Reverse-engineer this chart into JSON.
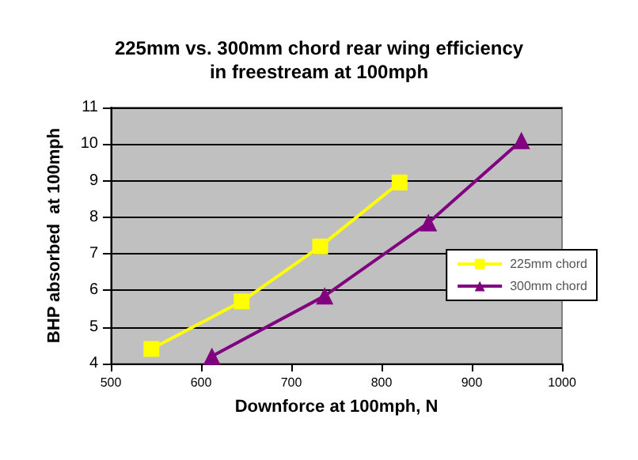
{
  "chart_data": {
    "type": "line",
    "title": "225mm vs. 300mm chord rear wing efficiency\nin freestream at 100mph",
    "xlabel": "Downforce at 100mph, N",
    "ylabel": "BHP absorbed  at 100mph",
    "xlim": [
      500,
      1000
    ],
    "xticks": [
      500,
      600,
      700,
      800,
      900,
      1000
    ],
    "ylim": [
      4,
      11
    ],
    "yticks": [
      4,
      5,
      6,
      7,
      8,
      9,
      10,
      11
    ],
    "grid": "y",
    "legend": "right",
    "series": [
      {
        "name": "225mm chord",
        "color": "#ffff00",
        "marker": "square",
        "x": [
          545,
          645,
          732,
          820
        ],
        "values": [
          4.4,
          5.7,
          7.2,
          8.95
        ]
      },
      {
        "name": "300mm chord",
        "color": "#800080",
        "marker": "triangle",
        "x": [
          612,
          737,
          852,
          955
        ],
        "values": [
          4.2,
          5.85,
          7.85,
          10.1
        ]
      }
    ]
  }
}
